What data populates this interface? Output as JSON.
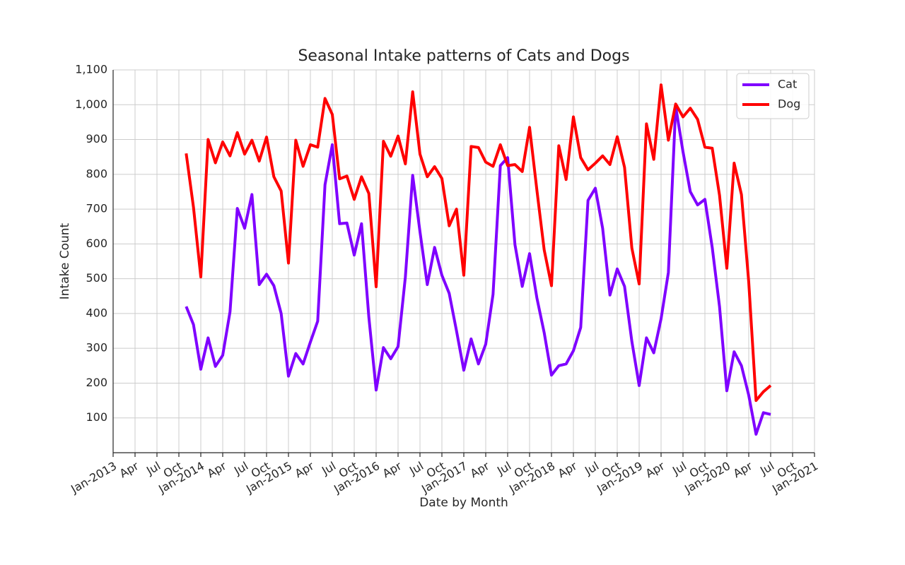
{
  "chart_data": {
    "type": "line",
    "title": "Seasonal Intake patterns of Cats and Dogs",
    "xlabel": "Date by Month",
    "ylabel": "Intake Count",
    "x": [
      "2013-11",
      "2013-12",
      "2014-01",
      "2014-02",
      "2014-03",
      "2014-04",
      "2014-05",
      "2014-06",
      "2014-07",
      "2014-08",
      "2014-09",
      "2014-10",
      "2014-11",
      "2014-12",
      "2015-01",
      "2015-02",
      "2015-03",
      "2015-04",
      "2015-05",
      "2015-06",
      "2015-07",
      "2015-08",
      "2015-09",
      "2015-10",
      "2015-11",
      "2015-12",
      "2016-01",
      "2016-02",
      "2016-03",
      "2016-04",
      "2016-05",
      "2016-06",
      "2016-07",
      "2016-08",
      "2016-09",
      "2016-10",
      "2016-11",
      "2016-12",
      "2017-01",
      "2017-02",
      "2017-03",
      "2017-04",
      "2017-05",
      "2017-06",
      "2017-07",
      "2017-08",
      "2017-09",
      "2017-10",
      "2017-11",
      "2017-12",
      "2018-01",
      "2018-02",
      "2018-03",
      "2018-04",
      "2018-05",
      "2018-06",
      "2018-07",
      "2018-08",
      "2018-09",
      "2018-10",
      "2018-11",
      "2018-12",
      "2019-01",
      "2019-02",
      "2019-03",
      "2019-04",
      "2019-05",
      "2019-06",
      "2019-07",
      "2019-08",
      "2019-09",
      "2019-10",
      "2019-11",
      "2019-12",
      "2020-01",
      "2020-02",
      "2020-03",
      "2020-04",
      "2020-05",
      "2020-06",
      "2020-07"
    ],
    "series": [
      {
        "name": "Cat",
        "color": "#7f00ff",
        "values": [
          420,
          368,
          240,
          330,
          248,
          280,
          405,
          702,
          645,
          742,
          483,
          513,
          480,
          400,
          220,
          285,
          255,
          318,
          378,
          770,
          885,
          658,
          660,
          568,
          658,
          390,
          180,
          302,
          270,
          305,
          505,
          797,
          635,
          483,
          590,
          510,
          458,
          350,
          237,
          327,
          255,
          312,
          455,
          825,
          848,
          598,
          478,
          572,
          445,
          345,
          223,
          250,
          255,
          293,
          360,
          725,
          760,
          645,
          453,
          528,
          478,
          320,
          193,
          330,
          287,
          385,
          518,
          995,
          865,
          750,
          712,
          728,
          590,
          420,
          178,
          290,
          250,
          165,
          53,
          115,
          110
        ]
      },
      {
        "name": "Dog",
        "color": "#ff0000",
        "values": [
          860,
          705,
          505,
          900,
          833,
          893,
          853,
          920,
          858,
          898,
          838,
          907,
          793,
          752,
          545,
          898,
          823,
          885,
          878,
          1018,
          972,
          787,
          795,
          728,
          793,
          745,
          477,
          895,
          852,
          910,
          830,
          1037,
          858,
          793,
          822,
          788,
          652,
          700,
          510,
          880,
          877,
          835,
          823,
          885,
          825,
          828,
          808,
          935,
          755,
          583,
          480,
          882,
          785,
          965,
          848,
          813,
          832,
          853,
          828,
          908,
          820,
          588,
          485,
          945,
          843,
          1057,
          898,
          1002,
          965,
          990,
          958,
          878,
          875,
          740,
          530,
          832,
          742,
          490,
          150,
          175,
          193
        ]
      }
    ],
    "xlim": [
      "2013-01",
      "2021-01"
    ],
    "xticks": [
      {
        "value": "2013-01",
        "label": "Jan-2013"
      },
      {
        "value": "2013-04",
        "label": "Apr"
      },
      {
        "value": "2013-07",
        "label": "Jul"
      },
      {
        "value": "2013-10",
        "label": "Oct"
      },
      {
        "value": "2014-01",
        "label": "Jan-2014"
      },
      {
        "value": "2014-04",
        "label": "Apr"
      },
      {
        "value": "2014-07",
        "label": "Jul"
      },
      {
        "value": "2014-10",
        "label": "Oct"
      },
      {
        "value": "2015-01",
        "label": "Jan-2015"
      },
      {
        "value": "2015-04",
        "label": "Apr"
      },
      {
        "value": "2015-07",
        "label": "Jul"
      },
      {
        "value": "2015-10",
        "label": "Oct"
      },
      {
        "value": "2016-01",
        "label": "Jan-2016"
      },
      {
        "value": "2016-04",
        "label": "Apr"
      },
      {
        "value": "2016-07",
        "label": "Jul"
      },
      {
        "value": "2016-10",
        "label": "Oct"
      },
      {
        "value": "2017-01",
        "label": "Jan-2017"
      },
      {
        "value": "2017-04",
        "label": "Apr"
      },
      {
        "value": "2017-07",
        "label": "Jul"
      },
      {
        "value": "2017-10",
        "label": "Oct"
      },
      {
        "value": "2018-01",
        "label": "Jan-2018"
      },
      {
        "value": "2018-04",
        "label": "Apr"
      },
      {
        "value": "2018-07",
        "label": "Jul"
      },
      {
        "value": "2018-10",
        "label": "Oct"
      },
      {
        "value": "2019-01",
        "label": "Jan-2019"
      },
      {
        "value": "2019-04",
        "label": "Apr"
      },
      {
        "value": "2019-07",
        "label": "Jul"
      },
      {
        "value": "2019-10",
        "label": "Oct"
      },
      {
        "value": "2020-01",
        "label": "Jan-2020"
      },
      {
        "value": "2020-04",
        "label": "Apr"
      },
      {
        "value": "2020-07",
        "label": "Jul"
      },
      {
        "value": "2020-10",
        "label": "Oct"
      },
      {
        "value": "2021-01",
        "label": "Jan-2021"
      }
    ],
    "ylim": [
      0,
      1100
    ],
    "yticks": [
      100,
      200,
      300,
      400,
      500,
      600,
      700,
      800,
      900,
      {
        "value": 1000,
        "label": "1,000"
      },
      {
        "value": 1100,
        "label": "1,100"
      }
    ],
    "grid": true,
    "legend": "upper right"
  }
}
